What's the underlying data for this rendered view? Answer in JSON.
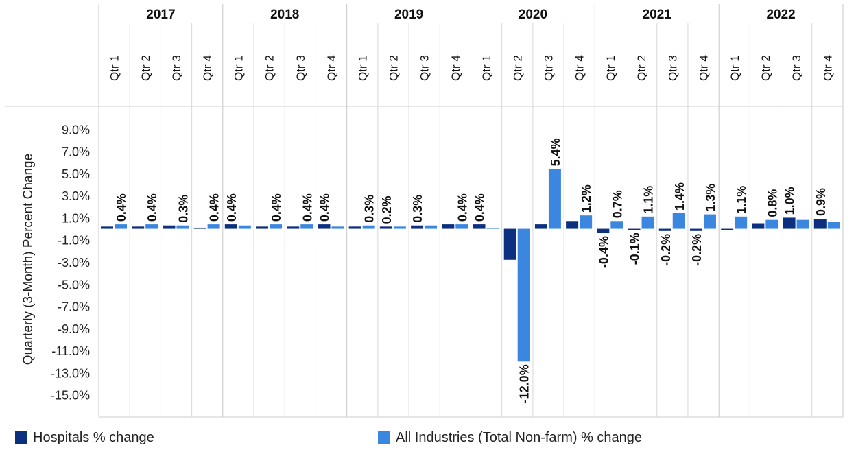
{
  "chart_data": {
    "type": "bar",
    "ylabel": "Quarterly (3-Month) Percent Change",
    "ylim": [
      -17.0,
      11.0
    ],
    "y_ticks": [
      "9.0%",
      "7.0%",
      "5.0%",
      "3.0%",
      "1.0%",
      "-1.0%",
      "-3.0%",
      "-5.0%",
      "-7.0%",
      "-9.0%",
      "-11.0%",
      "-13.0%",
      "-15.0%"
    ],
    "y_tick_values": [
      9,
      7,
      5,
      3,
      1,
      -1,
      -3,
      -5,
      -7,
      -9,
      -11,
      -13,
      -15
    ],
    "years": [
      "2017",
      "2018",
      "2019",
      "2020",
      "2021",
      "2022"
    ],
    "quarters": [
      "Qtr 1",
      "Qtr 2",
      "Qtr 3",
      "Qtr 4"
    ],
    "series": [
      {
        "name": "Hospitals % change",
        "color": "#0d2f80",
        "values": [
          0.2,
          0.2,
          0.3,
          0.1,
          0.4,
          0.2,
          0.2,
          0.4,
          0.2,
          0.2,
          0.3,
          0.4,
          0.4,
          -2.8,
          0.4,
          0.7,
          -0.4,
          -0.1,
          -0.2,
          -0.2,
          -0.1,
          0.5,
          1.0,
          0.9
        ],
        "labels": [
          "",
          "",
          "",
          "",
          "0.4%",
          "",
          "",
          "0.4%",
          "",
          "0.2%",
          "0.3%",
          "",
          "0.4%",
          "",
          "",
          "",
          "-0.4%",
          "-0.1%",
          "-0.2%",
          "-0.2%",
          "",
          "",
          "1.0%",
          "0.9%"
        ]
      },
      {
        "name": "All Industries (Total Non-farm) % change",
        "color": "#3b87e0",
        "values": [
          0.4,
          0.4,
          0.3,
          0.4,
          0.3,
          0.4,
          0.4,
          0.2,
          0.3,
          0.2,
          0.3,
          0.4,
          0.1,
          -12.0,
          5.4,
          1.2,
          0.7,
          1.1,
          1.4,
          1.3,
          1.1,
          0.8,
          0.8,
          0.6
        ],
        "labels": [
          "0.4%",
          "0.4%",
          "0.3%",
          "0.4%",
          "",
          "0.4%",
          "0.4%",
          "",
          "0.3%",
          "",
          "",
          "0.4%",
          "",
          "-12.0%",
          "5.4%",
          "1.2%",
          "0.7%",
          "1.1%",
          "1.4%",
          "1.3%",
          "1.1%",
          "0.8%",
          "",
          ""
        ]
      }
    ]
  },
  "legend": {
    "hospitals": "Hospitals % change",
    "all_industries": "All Industries (Total Non-farm) % change"
  }
}
